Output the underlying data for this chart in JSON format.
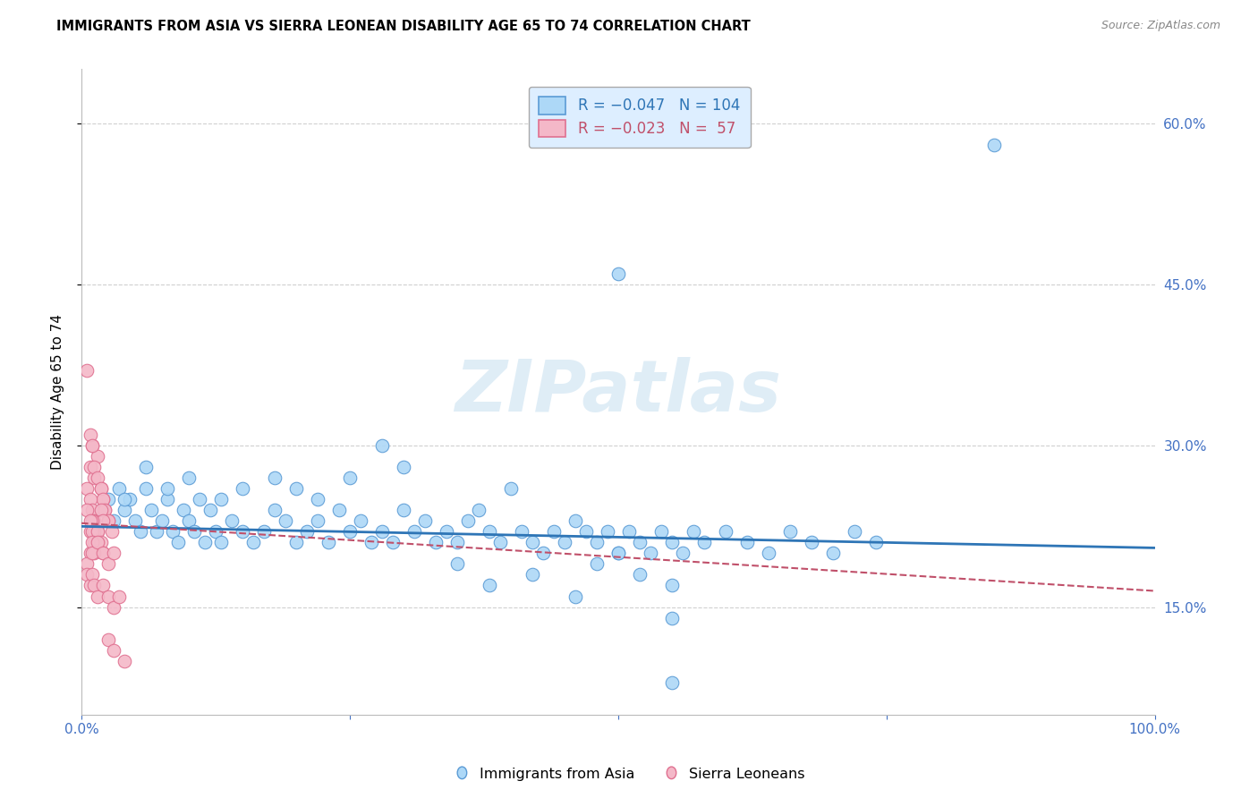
{
  "title": "IMMIGRANTS FROM ASIA VS SIERRA LEONEAN DISABILITY AGE 65 TO 74 CORRELATION CHART",
  "source": "Source: ZipAtlas.com",
  "ylabel": "Disability Age 65 to 74",
  "xlim": [
    0.0,
    1.0
  ],
  "ylim": [
    0.05,
    0.65
  ],
  "yticks": [
    0.15,
    0.3,
    0.45,
    0.6
  ],
  "ytick_labels": [
    "15.0%",
    "30.0%",
    "45.0%",
    "60.0%"
  ],
  "xticks": [
    0.0,
    0.25,
    0.5,
    0.75,
    1.0
  ],
  "xtick_labels": [
    "0.0%",
    "",
    "",
    "",
    "100.0%"
  ],
  "legend_label_blue": "Immigrants from Asia",
  "legend_label_pink": "Sierra Leoneans",
  "blue_fill": "#add8f7",
  "blue_edge": "#5b9bd5",
  "blue_line": "#2e75b6",
  "pink_fill": "#f4b8c8",
  "pink_edge": "#e07090",
  "pink_line": "#c0506a",
  "watermark": "ZIPatlas",
  "axis_label_color": "#4472c4",
  "grid_color": "#d0d0d0",
  "blue_trend_start_y": 0.225,
  "blue_trend_end_y": 0.205,
  "pink_trend_start_y": 0.228,
  "pink_trend_end_y": 0.165,
  "blue_x": [
    0.02,
    0.025,
    0.03,
    0.035,
    0.04,
    0.045,
    0.05,
    0.055,
    0.06,
    0.065,
    0.07,
    0.075,
    0.08,
    0.085,
    0.09,
    0.095,
    0.1,
    0.105,
    0.11,
    0.115,
    0.12,
    0.125,
    0.13,
    0.14,
    0.15,
    0.16,
    0.17,
    0.18,
    0.19,
    0.2,
    0.21,
    0.22,
    0.23,
    0.24,
    0.25,
    0.26,
    0.27,
    0.28,
    0.29,
    0.3,
    0.31,
    0.32,
    0.33,
    0.34,
    0.35,
    0.36,
    0.37,
    0.38,
    0.39,
    0.4,
    0.41,
    0.42,
    0.43,
    0.44,
    0.45,
    0.46,
    0.47,
    0.48,
    0.49,
    0.5,
    0.51,
    0.52,
    0.53,
    0.54,
    0.55,
    0.56,
    0.57,
    0.58,
    0.6,
    0.62,
    0.64,
    0.66,
    0.68,
    0.7,
    0.72,
    0.74,
    0.52,
    0.48,
    0.55,
    0.5,
    0.38,
    0.42,
    0.46,
    0.35,
    0.3,
    0.28,
    0.25,
    0.22,
    0.2,
    0.18,
    0.15,
    0.13,
    0.1,
    0.08,
    0.06,
    0.04,
    0.5,
    0.55,
    0.85,
    0.55
  ],
  "blue_y": [
    0.24,
    0.25,
    0.23,
    0.26,
    0.24,
    0.25,
    0.23,
    0.22,
    0.26,
    0.24,
    0.22,
    0.23,
    0.25,
    0.22,
    0.21,
    0.24,
    0.23,
    0.22,
    0.25,
    0.21,
    0.24,
    0.22,
    0.21,
    0.23,
    0.22,
    0.21,
    0.22,
    0.24,
    0.23,
    0.21,
    0.22,
    0.23,
    0.21,
    0.24,
    0.22,
    0.23,
    0.21,
    0.22,
    0.21,
    0.24,
    0.22,
    0.23,
    0.21,
    0.22,
    0.21,
    0.23,
    0.24,
    0.22,
    0.21,
    0.26,
    0.22,
    0.21,
    0.2,
    0.22,
    0.21,
    0.23,
    0.22,
    0.21,
    0.22,
    0.2,
    0.22,
    0.21,
    0.2,
    0.22,
    0.21,
    0.2,
    0.22,
    0.21,
    0.22,
    0.21,
    0.2,
    0.22,
    0.21,
    0.2,
    0.22,
    0.21,
    0.18,
    0.19,
    0.17,
    0.2,
    0.17,
    0.18,
    0.16,
    0.19,
    0.28,
    0.3,
    0.27,
    0.25,
    0.26,
    0.27,
    0.26,
    0.25,
    0.27,
    0.26,
    0.28,
    0.25,
    0.46,
    0.14,
    0.58,
    0.08
  ],
  "pink_x": [
    0.005,
    0.008,
    0.01,
    0.012,
    0.015,
    0.018,
    0.02,
    0.022,
    0.025,
    0.008,
    0.01,
    0.012,
    0.015,
    0.018,
    0.02,
    0.022,
    0.025,
    0.028,
    0.005,
    0.008,
    0.01,
    0.012,
    0.015,
    0.018,
    0.02,
    0.008,
    0.01,
    0.012,
    0.015,
    0.005,
    0.008,
    0.01,
    0.012,
    0.015,
    0.018,
    0.02,
    0.008,
    0.01,
    0.012,
    0.005,
    0.01,
    0.015,
    0.02,
    0.025,
    0.03,
    0.005,
    0.008,
    0.01,
    0.012,
    0.015,
    0.02,
    0.025,
    0.03,
    0.035,
    0.025,
    0.03,
    0.04
  ],
  "pink_y": [
    0.37,
    0.28,
    0.3,
    0.27,
    0.29,
    0.26,
    0.25,
    0.24,
    0.23,
    0.31,
    0.3,
    0.28,
    0.27,
    0.26,
    0.25,
    0.24,
    0.23,
    0.22,
    0.26,
    0.25,
    0.24,
    0.23,
    0.22,
    0.24,
    0.23,
    0.22,
    0.23,
    0.22,
    0.21,
    0.24,
    0.23,
    0.22,
    0.21,
    0.22,
    0.21,
    0.2,
    0.2,
    0.21,
    0.2,
    0.19,
    0.2,
    0.21,
    0.2,
    0.19,
    0.2,
    0.18,
    0.17,
    0.18,
    0.17,
    0.16,
    0.17,
    0.16,
    0.15,
    0.16,
    0.12,
    0.11,
    0.1
  ]
}
